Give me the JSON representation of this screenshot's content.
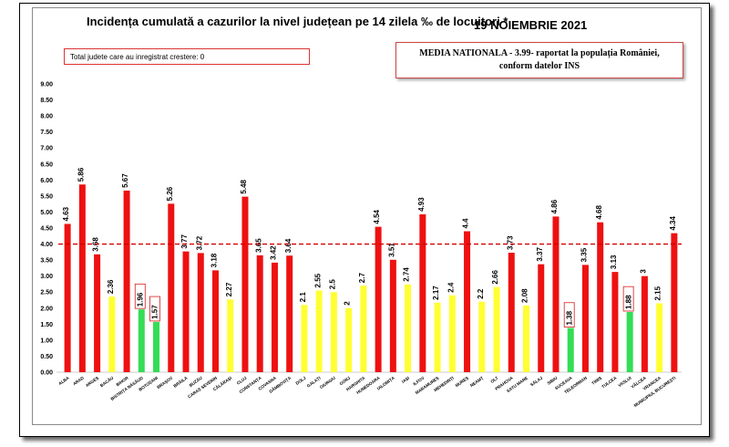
{
  "header": {
    "title": "Incidența cumulată a cazurilor la nivel județean pe 14 zilela ‰ de locuitori *",
    "date": "19 NOIEMBRIE 2021"
  },
  "info_left": "Total judete care au inregistrat crestere: 0",
  "info_right": {
    "line1": "MEDIA NATIONALA - 3.99- raportat la populația României,",
    "line2": "conform datelor INS"
  },
  "colors": {
    "above_average": "#ee1111",
    "mid": "#ffff33",
    "low": "#33dd55",
    "reference_line": "#d40000"
  },
  "chart_data": {
    "type": "bar",
    "ylim": [
      0,
      9
    ],
    "y_ticks": [
      "0.00",
      "0.50",
      "1.00",
      "1.50",
      "2.00",
      "2.50",
      "3.00",
      "3.50",
      "4.00",
      "4.50",
      "5.00",
      "5.50",
      "6.00",
      "6.50",
      "7.00",
      "7.50",
      "8.00",
      "8.50",
      "9.00"
    ],
    "reference_value": 4.0,
    "categories": [
      "ALBA",
      "ARAD",
      "ARGEȘ",
      "BACĂU",
      "BIHOR",
      "BISTRIȚA NĂSĂUD",
      "BOTOȘANI",
      "BRAȘOV",
      "BRĂILA",
      "BUZĂU",
      "CARAȘ SEVERIN",
      "CĂLĂRAȘI",
      "CLUJ",
      "CONSTANȚA",
      "COVASNA",
      "DÂMBOVIȚA",
      "DOLJ",
      "GALAȚI",
      "GIURGIU",
      "GORJ",
      "HARGHITA",
      "HUNEDOARA",
      "IALOMIȚA",
      "IAȘI",
      "ILFOV",
      "MARAMUREȘ",
      "MEHEDINȚI",
      "MUREȘ",
      "NEAMȚ",
      "OLT",
      "PRAHOVA",
      "SATU MARE",
      "SĂLAJ",
      "SIBIU",
      "SUCEAVA",
      "TELEORMAN",
      "TIMIȘ",
      "TULCEA",
      "VASLUI",
      "VÂLCEA",
      "VRANCEA",
      "MUNICIPIUL BUCUREȘTI"
    ],
    "values": [
      4.63,
      5.86,
      3.68,
      2.36,
      5.67,
      1.96,
      1.57,
      5.26,
      3.77,
      3.72,
      3.18,
      2.27,
      5.48,
      3.65,
      3.42,
      3.64,
      2.1,
      2.55,
      2.5,
      2,
      2.7,
      4.54,
      3.51,
      2.74,
      4.93,
      2.17,
      2.4,
      4.4,
      2.2,
      2.66,
      3.73,
      2.08,
      3.37,
      4.86,
      1.38,
      3.35,
      4.68,
      3.13,
      1.88,
      3,
      2.15,
      4.34
    ],
    "value_labels": [
      "4.63",
      "5.86",
      "3.68",
      "2.36",
      "5.67",
      "1.96",
      "1.57",
      "5.26",
      "3.77",
      "3.72",
      "3.18",
      "2.27",
      "5.48",
      "3.65",
      "3.42",
      "3.64",
      "2.1",
      "2.55",
      "2.5",
      "2",
      "2.7",
      "4.54",
      "3.51",
      "2.74",
      "4.93",
      "2.17",
      "2.4",
      "4.4",
      "2.2",
      "2.66",
      "3.73",
      "2.08",
      "3.37",
      "4.86",
      "1.38",
      "3.35",
      "4.68",
      "3.13",
      "1.88",
      "3",
      "2.15",
      "4.34"
    ],
    "bar_colors": [
      "red",
      "red",
      "red",
      "yellow",
      "red",
      "green",
      "green",
      "red",
      "red",
      "red",
      "red",
      "yellow",
      "red",
      "red",
      "red",
      "red",
      "yellow",
      "yellow",
      "yellow",
      "yellow",
      "yellow",
      "red",
      "red",
      "yellow",
      "red",
      "yellow",
      "yellow",
      "red",
      "yellow",
      "yellow",
      "red",
      "yellow",
      "red",
      "red",
      "green",
      "red",
      "red",
      "red",
      "green",
      "red",
      "yellow",
      "red"
    ],
    "boxed_labels": [
      "1.96",
      "1.57",
      "1.38",
      "1.88"
    ],
    "grid": false
  }
}
